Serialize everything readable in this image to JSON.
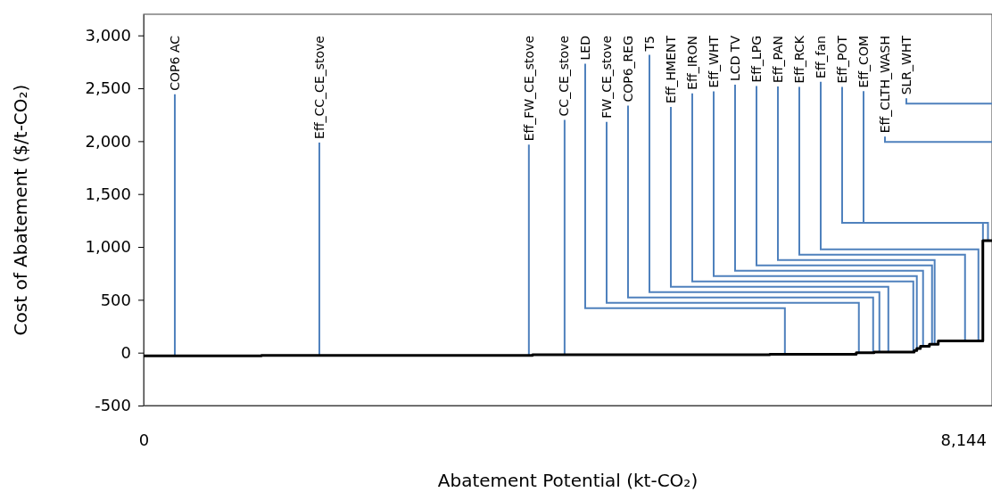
{
  "chart_data": {
    "type": "step",
    "xlabel": "Abatement Potential (kt-CO₂)",
    "ylabel": "Cost of Abatement ($/t-CO₂)",
    "xlim": [
      0,
      8430
    ],
    "xticks": [
      0,
      {
        "value": 8144,
        "label": "8,144"
      }
    ],
    "ylim": [
      -500,
      3200
    ],
    "yticks": [
      {
        "value": -500,
        "label": "-500"
      },
      0,
      500,
      {
        "value": 1000,
        "label": "1,000"
      },
      {
        "value": 1500,
        "label": "1,500"
      },
      {
        "value": 2000,
        "label": "2,000"
      },
      {
        "value": 2500,
        "label": "2,500"
      },
      {
        "value": 3000,
        "label": "3,000"
      }
    ],
    "series": [
      {
        "color": "#000000",
        "x": [
          0,
          1170,
          3864,
          6221,
          7081,
          7258,
          7657,
          7683,
          7719,
          7808,
          7896,
          8339,
          8430
        ],
        "values": [
          -30,
          -25,
          -20,
          -15,
          0,
          5,
          20,
          40,
          60,
          80,
          110,
          1060,
          1060
        ]
      }
    ],
    "annotations": [
      {
        "text": "COP6 AC",
        "x": 310,
        "y": -30
      },
      {
        "text": "Eff_CC_CE_stove",
        "x": 1746,
        "y": -25
      },
      {
        "text": "Eff_FW_CE_stove",
        "x": 3828,
        "y": -25
      },
      {
        "text": "CC_CE_stove",
        "x": 4183,
        "y": -20
      },
      {
        "text": "LED",
        "x": 6372,
        "y": -15
      },
      {
        "text": "FW_CE_stove",
        "x": 7107,
        "y": 0
      },
      {
        "text": "COP6_REG",
        "x": 7249,
        "y": 0
      },
      {
        "text": "T5",
        "x": 7311,
        "y": 5
      },
      {
        "text": "Eff_HMENT",
        "x": 7400,
        "y": 5
      },
      {
        "text": "Eff_IRON",
        "x": 7648,
        "y": 5
      },
      {
        "text": "Eff_WHT",
        "x": 7683,
        "y": 40
      },
      {
        "text": "LCD TV",
        "x": 7745,
        "y": 60
      },
      {
        "text": "Eff_LPG",
        "x": 7834,
        "y": 80
      },
      {
        "text": "Eff_PAN",
        "x": 7860,
        "y": 80
      },
      {
        "text": "Eff_RCK",
        "x": 8162,
        "y": 110
      },
      {
        "text": "Eff_fan",
        "x": 8295,
        "y": 110
      },
      {
        "text": "Eff_POT",
        "x": 8340,
        "y": 1060
      },
      {
        "text": "Eff_COM",
        "x": 8390,
        "y": 1060
      },
      "Eff_CLTH_WASH",
      "SLR_WHT"
    ]
  }
}
